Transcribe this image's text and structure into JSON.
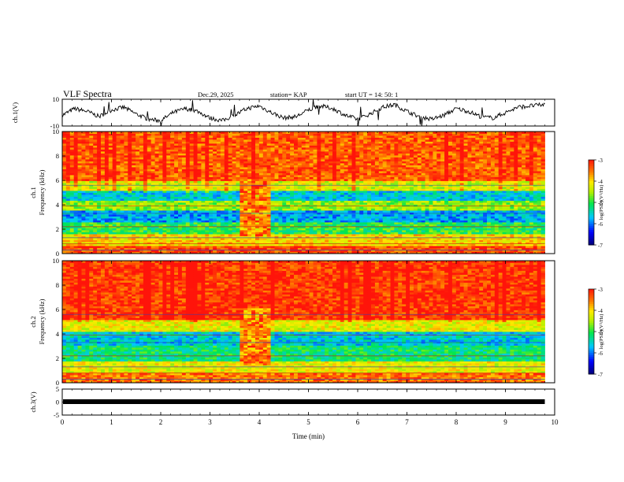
{
  "header": {
    "title": "VLF Spectra",
    "date": "Dec.29, 2025",
    "station": "station= KAP",
    "start": "start  UT  =   14: 50: 1"
  },
  "colors": {
    "spec_low": "#0000c0",
    "spec_mid": "#00e060",
    "spec_high": "#ff2010",
    "trace": "#000000"
  },
  "chart_data": [
    {
      "type": "line",
      "name": "ch1-waveform",
      "ylabel": "ch.1(V)",
      "ylim": [
        -10,
        10
      ],
      "yticks": [
        10,
        -10
      ],
      "xlim": [
        0,
        10
      ],
      "x": [
        0,
        0.25,
        0.5,
        0.75,
        1.0,
        1.25,
        1.5,
        1.75,
        2.0,
        2.25,
        2.5,
        2.75,
        3.0,
        3.25,
        3.5,
        3.75,
        4.0,
        4.25,
        4.5,
        4.75,
        5.0,
        5.25,
        5.5,
        5.75,
        6.0,
        6.25,
        6.5,
        6.75,
        7.0,
        7.25,
        7.5,
        7.75,
        8.0,
        8.25,
        8.5,
        8.75,
        9.0,
        9.25,
        9.5,
        9.8
      ],
      "values": [
        -2,
        3,
        1,
        -3,
        2,
        4,
        -1,
        -5,
        -6,
        0,
        3,
        1,
        -4,
        -6,
        -2,
        3,
        5,
        0,
        -4,
        -3,
        2,
        5,
        3,
        -2,
        -5,
        -1,
        4,
        6,
        1,
        -3,
        -5,
        -2,
        3,
        1,
        -3,
        -4,
        0,
        4,
        5,
        6
      ]
    },
    {
      "type": "heatmap",
      "name": "ch1-spectrogram",
      "ylabel": "ch.1\nFrequency (kHz)",
      "ylim": [
        0,
        10
      ],
      "yticks": [
        0,
        2,
        4,
        6,
        8,
        10
      ],
      "xlim": [
        0,
        9.8
      ],
      "colorbar": {
        "label": "log(PSD)(V²/Hz)",
        "range": [
          -7,
          -3
        ],
        "ticks": [
          -3,
          -4,
          -5,
          -6,
          -7
        ]
      },
      "bands_khz": [
        {
          "from": 0,
          "to": 0.7,
          "level": -3.3
        },
        {
          "from": 0.7,
          "to": 1.6,
          "level": -4.0
        },
        {
          "from": 1.6,
          "to": 2.6,
          "level": -5.0
        },
        {
          "from": 2.6,
          "to": 3.6,
          "level": -5.8
        },
        {
          "from": 3.6,
          "to": 4.4,
          "level": -4.6
        },
        {
          "from": 4.4,
          "to": 5.2,
          "level": -5.6
        },
        {
          "from": 5.2,
          "to": 6.0,
          "level": -4.3
        },
        {
          "from": 6.0,
          "to": 10,
          "level": -3.4
        }
      ],
      "event": {
        "t_start": 3.6,
        "t_end": 4.2
      }
    },
    {
      "type": "heatmap",
      "name": "ch2-spectrogram",
      "ylabel": "ch.2\nFrequency (kHz)",
      "ylim": [
        0,
        10
      ],
      "yticks": [
        0,
        2,
        4,
        6,
        8,
        10
      ],
      "xlim": [
        0,
        9.8
      ],
      "colorbar": {
        "label": "log(PSD)(V²/Hz)",
        "range": [
          -7,
          -3
        ],
        "ticks": [
          -3,
          -4,
          -5,
          -6,
          -7
        ]
      },
      "bands_khz": [
        {
          "from": 0,
          "to": 0.8,
          "level": -3.5
        },
        {
          "from": 0.8,
          "to": 1.8,
          "level": -4.2
        },
        {
          "from": 1.8,
          "to": 3.0,
          "level": -5.2
        },
        {
          "from": 3.0,
          "to": 4.2,
          "level": -5.6
        },
        {
          "from": 4.2,
          "to": 5.2,
          "level": -4.2
        },
        {
          "from": 5.2,
          "to": 10,
          "level": -3.2
        }
      ],
      "event": {
        "t_start": 3.6,
        "t_end": 4.2
      }
    },
    {
      "type": "line",
      "name": "ch3-waveform",
      "ylabel": "ch.3(V)",
      "ylim": [
        -5,
        5
      ],
      "yticks": [
        5,
        0,
        -5
      ],
      "xlim": [
        0,
        10
      ],
      "level": 0,
      "xlabel": "Time  (min)",
      "xticks": [
        0,
        1,
        2,
        3,
        4,
        5,
        6,
        7,
        8,
        9,
        10
      ]
    }
  ]
}
